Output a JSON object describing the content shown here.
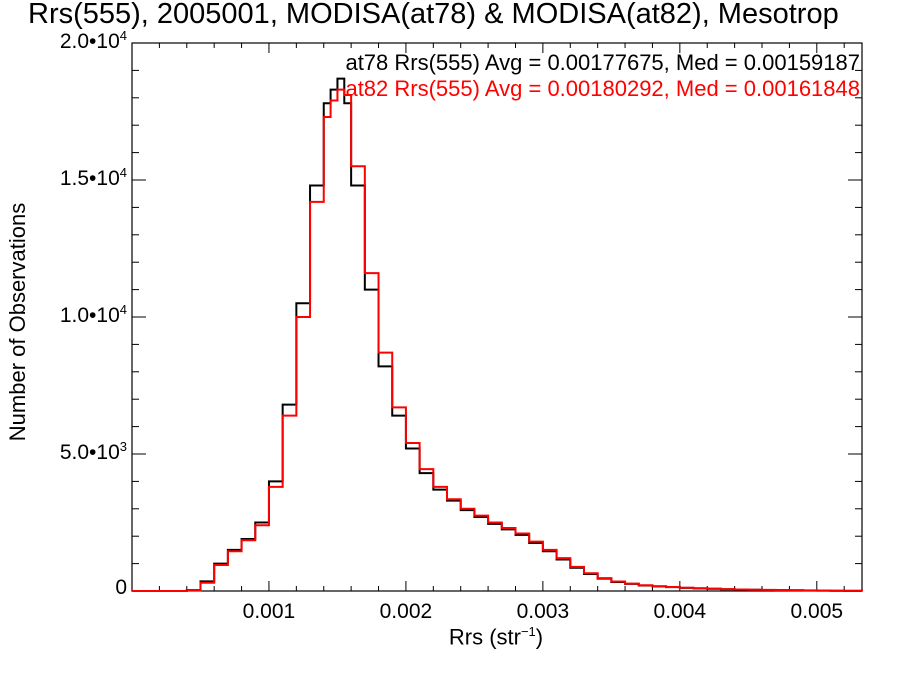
{
  "chart_data": {
    "type": "line",
    "title": "Rrs(555), 2005001, MODISA(at78) & MODISA(at82), Mesotrop",
    "xlabel_base": "Rrs (str",
    "xlabel_sup": "−1",
    "xlabel_tail": ")",
    "ylabel": "Number of Observations",
    "xlim": [
      0.0,
      0.00533
    ],
    "ylim": [
      0,
      20000
    ],
    "xticks": [
      {
        "value": 0.001,
        "label": "0.001"
      },
      {
        "value": 0.002,
        "label": "0.002"
      },
      {
        "value": 0.003,
        "label": "0.003"
      },
      {
        "value": 0.004,
        "label": "0.004"
      },
      {
        "value": 0.005,
        "label": "0.005"
      }
    ],
    "yticks": [
      {
        "value": 0,
        "mant": "0",
        "exp": ""
      },
      {
        "value": 5000,
        "mant": "5.0•10",
        "exp": "3"
      },
      {
        "value": 10000,
        "mant": "1.0•10",
        "exp": "4"
      },
      {
        "value": 15000,
        "mant": "1.5•10",
        "exp": "4"
      },
      {
        "value": 20000,
        "mant": "2.0•10",
        "exp": "4"
      }
    ],
    "legend_placement": "top-right",
    "series": [
      {
        "name": "at78",
        "color": "#000000",
        "legend": "at78 Rrs(555) Avg = 0.00177675, Med = 0.00159187",
        "x": [
          0.0,
          0.0003,
          0.0004,
          0.0005,
          0.0006,
          0.0007,
          0.0008,
          0.0009,
          0.001,
          0.0011,
          0.0012,
          0.0013,
          0.0014,
          0.00145,
          0.0015,
          0.00155,
          0.0016,
          0.0017,
          0.0018,
          0.0019,
          0.002,
          0.0021,
          0.0022,
          0.0023,
          0.0024,
          0.0025,
          0.0026,
          0.0027,
          0.0028,
          0.0029,
          0.003,
          0.0031,
          0.0032,
          0.0033,
          0.0034,
          0.0035,
          0.0036,
          0.0037,
          0.0038,
          0.0039,
          0.004,
          0.0041,
          0.0042,
          0.0043,
          0.0044,
          0.0045,
          0.0046,
          0.0047,
          0.0048,
          0.0049,
          0.005,
          0.0051,
          0.0052,
          0.00533
        ],
        "y": [
          0,
          0,
          30,
          350,
          1000,
          1500,
          1900,
          2500,
          4000,
          6800,
          10500,
          14800,
          17800,
          18300,
          18700,
          17800,
          14800,
          11000,
          8200,
          6400,
          5200,
          4300,
          3700,
          3300,
          2950,
          2700,
          2450,
          2250,
          2050,
          1750,
          1450,
          1150,
          850,
          620,
          450,
          330,
          260,
          200,
          170,
          140,
          115,
          95,
          80,
          65,
          55,
          45,
          38,
          32,
          26,
          20,
          15,
          10,
          6,
          4
        ]
      },
      {
        "name": "at82",
        "color": "#ff0000",
        "legend": "at82 Rrs(555) Avg = 0.00180292, Med = 0.00161848",
        "x": [
          0.0,
          0.0003,
          0.0004,
          0.0005,
          0.0006,
          0.0007,
          0.0008,
          0.0009,
          0.001,
          0.0011,
          0.0012,
          0.0013,
          0.0014,
          0.00145,
          0.0015,
          0.00155,
          0.0016,
          0.0017,
          0.0018,
          0.0019,
          0.002,
          0.0021,
          0.0022,
          0.0023,
          0.0024,
          0.0025,
          0.0026,
          0.0027,
          0.0028,
          0.0029,
          0.003,
          0.0031,
          0.0032,
          0.0033,
          0.0034,
          0.0035,
          0.0036,
          0.0037,
          0.0038,
          0.0039,
          0.004,
          0.0041,
          0.0042,
          0.0043,
          0.0044,
          0.0045,
          0.0046,
          0.0047,
          0.0048,
          0.0049,
          0.005,
          0.0051,
          0.0052,
          0.00533
        ],
        "y": [
          0,
          0,
          20,
          300,
          950,
          1450,
          1850,
          2400,
          3800,
          6400,
          10000,
          14200,
          17300,
          17900,
          18300,
          18100,
          15500,
          11600,
          8700,
          6700,
          5400,
          4450,
          3800,
          3350,
          3000,
          2750,
          2500,
          2300,
          2100,
          1800,
          1500,
          1200,
          880,
          650,
          470,
          345,
          270,
          210,
          175,
          145,
          120,
          100,
          84,
          68,
          57,
          47,
          40,
          33,
          27,
          21,
          16,
          11,
          7,
          4
        ]
      }
    ]
  }
}
